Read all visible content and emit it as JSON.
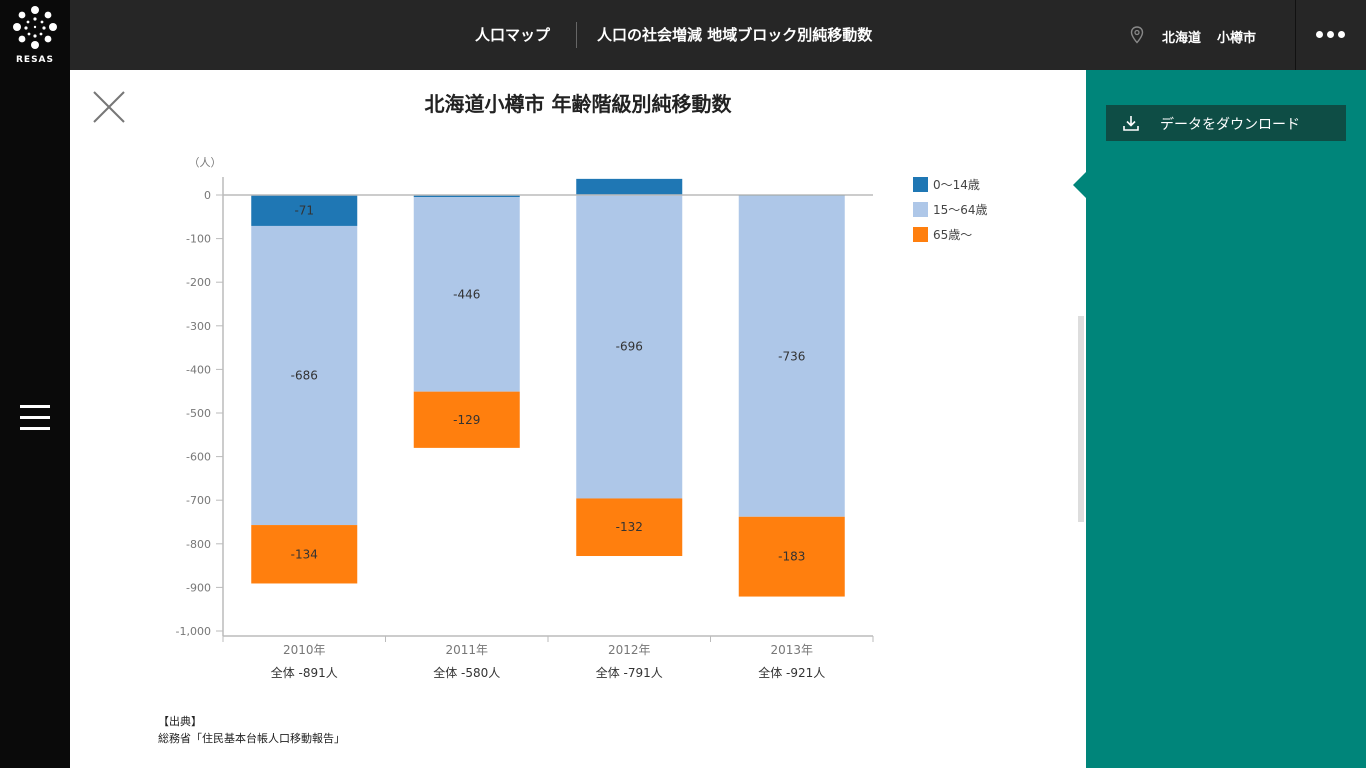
{
  "logo": {
    "text": "RESAS"
  },
  "header": {
    "app_name": "人口マップ",
    "page_title": "人口の社会増減 地域ブロック別純移動数",
    "prefecture": "北海道",
    "city": "小樽市"
  },
  "panel": {
    "download_label": "データをダウンロード"
  },
  "icons": {
    "close": "close-icon",
    "menu": "hamburger-menu-icon",
    "more": "more-dots-icon",
    "location": "location-pin-icon",
    "download": "download-icon"
  },
  "source": {
    "heading": "【出典】",
    "text": "総務省「住民基本台帳人口移動報告」"
  },
  "colors": {
    "header_bg": "#262626",
    "panel_bg": "#00857a",
    "download_bg": "#0e4d45",
    "series_0_14": "#1f77b4",
    "series_15_64": "#aec7e8",
    "series_65": "#ff7f0e"
  },
  "chart_data": {
    "type": "bar",
    "stacked": true,
    "title": "北海道小樽市 年齢階級別純移動数",
    "ylabel": "（人）",
    "ylim": [
      -1000,
      0
    ],
    "yticks": [
      0,
      -100,
      -200,
      -300,
      -400,
      -500,
      -600,
      -700,
      -800,
      -900,
      -1000
    ],
    "ytick_labels": [
      "0",
      "-100",
      "-200",
      "-300",
      "-400",
      "-500",
      "-600",
      "-700",
      "-800",
      "-900",
      "-1,000"
    ],
    "categories": [
      "2010年",
      "2011年",
      "2012年",
      "2013年"
    ],
    "totals_labels": [
      "全体 -891人",
      "全体 -580人",
      "全体 -791人",
      "全体 -921人"
    ],
    "series": [
      {
        "name": "0～14歳",
        "color": "#1f77b4",
        "values": [
          -71,
          -5,
          37,
          -2
        ],
        "labels": [
          "-71",
          "",
          "",
          ""
        ]
      },
      {
        "name": "15～64歳",
        "color": "#aec7e8",
        "values": [
          -686,
          -446,
          -696,
          -736
        ],
        "labels": [
          "-686",
          "-446",
          "-696",
          "-736"
        ]
      },
      {
        "name": "65歳～",
        "color": "#ff7f0e",
        "values": [
          -134,
          -129,
          -132,
          -183
        ],
        "labels": [
          "-134",
          "-129",
          "-132",
          "-183"
        ]
      }
    ],
    "legend_position": "right",
    "grid": false
  }
}
